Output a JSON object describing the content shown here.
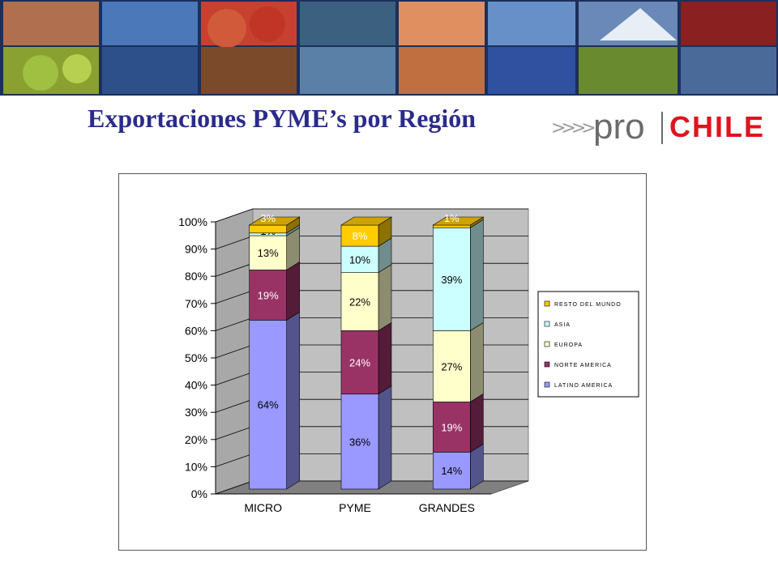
{
  "title": "Exportaciones  PYME’s por Región",
  "logo": {
    "arrows": ">>>>",
    "pro": "pro",
    "chile": "CHILE"
  },
  "chart_data": {
    "type": "bar",
    "stacked": true,
    "three_d": true,
    "categories": [
      "MICRO",
      "PYME",
      "GRANDES"
    ],
    "series": [
      {
        "name": "LATINO AMERICA",
        "color": "#9999ff",
        "values": [
          64,
          36,
          14
        ]
      },
      {
        "name": "NORTE AMERICA",
        "color": "#993366",
        "values": [
          19,
          24,
          19
        ]
      },
      {
        "name": "EUROPA",
        "color": "#ffffcc",
        "values": [
          13,
          22,
          27
        ]
      },
      {
        "name": "ASIA",
        "color": "#ccffff",
        "values": [
          1,
          10,
          39
        ]
      },
      {
        "name": "RESTO DEL MUNDO",
        "color": "#ffcc00",
        "values": [
          3,
          8,
          1
        ]
      }
    ],
    "data_labels": [
      [
        "64%",
        "19%",
        "13%",
        "1%",
        "3%"
      ],
      [
        "36%",
        "24%",
        "22%",
        "10%",
        "8%"
      ],
      [
        "14%",
        "19%",
        "27%",
        "39%",
        "1%"
      ]
    ],
    "y_ticks": [
      "0%",
      "10%",
      "20%",
      "30%",
      "40%",
      "50%",
      "60%",
      "70%",
      "80%",
      "90%",
      "100%"
    ],
    "ylim": [
      0,
      100
    ],
    "grid": true,
    "legend_position": "right"
  }
}
